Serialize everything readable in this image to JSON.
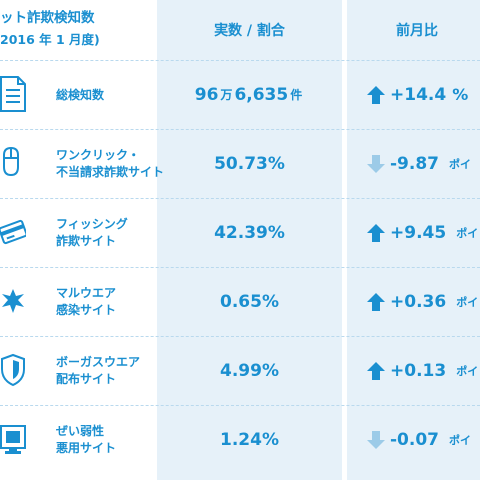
{
  "header": {
    "title": "ット詐欺検知数",
    "subtitle": "2016 年 1 月度)",
    "col_value": "実数 / 割合",
    "col_change": "前月比"
  },
  "rows": [
    {
      "label_1": "総検知数",
      "label_2": "",
      "value_a": "96",
      "value_unit_a": "万",
      "value_b": "6,635",
      "value_unit_b": "件",
      "direction": "up",
      "change": "+14.4",
      "change_unit": "%",
      "icon": "document-icon"
    },
    {
      "label_1": "ワンクリック・",
      "label_2": "不当請求詐欺サイト",
      "value_a": "50.73%",
      "value_unit_a": "",
      "value_b": "",
      "value_unit_b": "",
      "direction": "down",
      "change": "-9.87",
      "change_unit": "ポイ",
      "icon": "mouse-icon"
    },
    {
      "label_1": "フィッシング",
      "label_2": "詐欺サイト",
      "value_a": "42.39%",
      "value_unit_a": "",
      "value_b": "",
      "value_unit_b": "",
      "direction": "up",
      "change": "+9.45",
      "change_unit": "ポイ",
      "icon": "credit-card-icon"
    },
    {
      "label_1": "マルウエア",
      "label_2": "感染サイト",
      "value_a": "0.65%",
      "value_unit_a": "",
      "value_b": "",
      "value_unit_b": "",
      "direction": "up",
      "change": "+0.36",
      "change_unit": "ポイ",
      "icon": "virus-icon"
    },
    {
      "label_1": "ボーガスウエア",
      "label_2": "配布サイト",
      "value_a": "4.99%",
      "value_unit_a": "",
      "value_b": "",
      "value_unit_b": "",
      "direction": "up",
      "change": "+0.13",
      "change_unit": "ポイ",
      "icon": "shield-icon"
    },
    {
      "label_1": "ぜい弱性",
      "label_2": "悪用サイト",
      "value_a": "1.24%",
      "value_unit_a": "",
      "value_b": "",
      "value_unit_b": "",
      "direction": "down",
      "change": "-0.07",
      "change_unit": "ポイ",
      "icon": "monitor-icon"
    }
  ],
  "colors": {
    "accent": "#1a8fd0",
    "column_bg": "#e6f1f9",
    "arrow_up": "#1a8fd0",
    "arrow_down": "#9ccbe8"
  }
}
